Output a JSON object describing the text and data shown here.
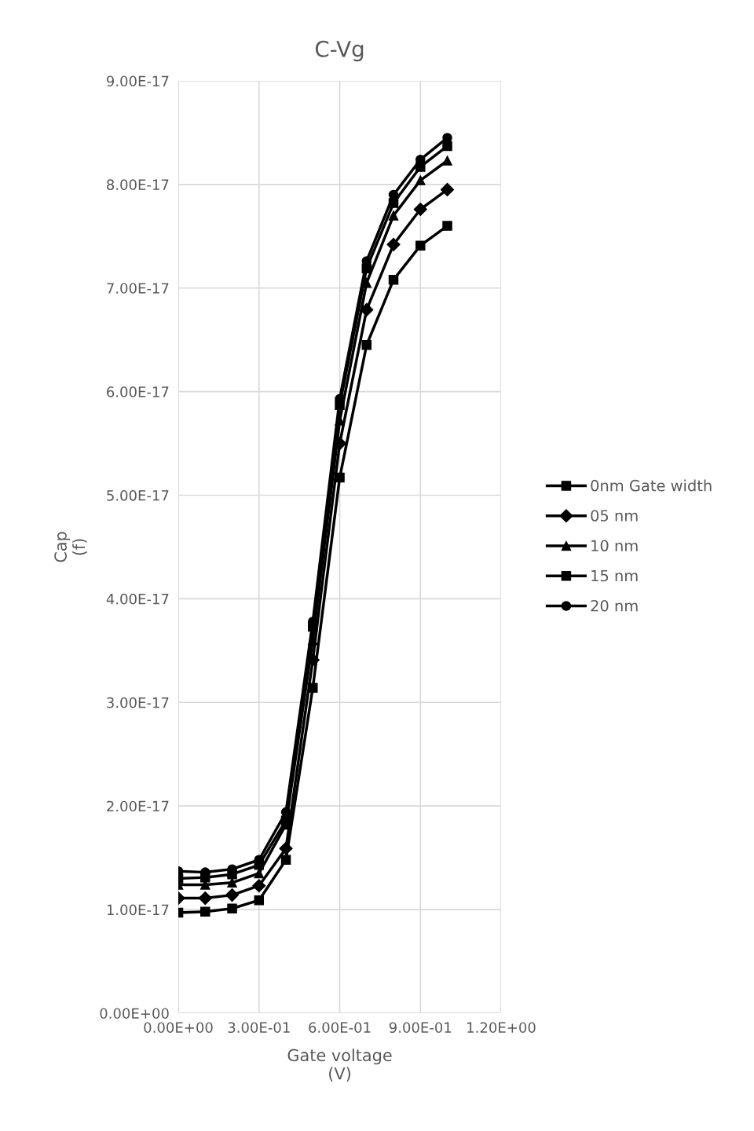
{
  "chart_data": {
    "type": "line",
    "title": "C-Vg",
    "xlabel": "Gate voltage\n(V)",
    "ylabel": "Cap\n(f)",
    "x": [
      0,
      0.1,
      0.2,
      0.3,
      0.4,
      0.5,
      0.6,
      0.7,
      0.8,
      0.9,
      1.0
    ],
    "series": [
      {
        "name": "0nm Gate width",
        "color": "#000000",
        "marker": "square",
        "values": [
          9.7e-18,
          9.8e-18,
          1.01e-17,
          1.09e-17,
          1.48e-17,
          3.14e-17,
          5.17e-17,
          6.45e-17,
          7.08e-17,
          7.41e-17,
          7.6e-17
        ]
      },
      {
        "name": "05 nm",
        "color": "#000000",
        "marker": "diamond",
        "values": [
          1.11e-17,
          1.11e-17,
          1.14e-17,
          1.23e-17,
          1.59e-17,
          3.41e-17,
          5.5e-17,
          6.79e-17,
          7.42e-17,
          7.76e-17,
          7.95e-17
        ]
      },
      {
        "name": "10 nm",
        "color": "#000000",
        "marker": "triangle",
        "values": [
          1.24e-17,
          1.24e-17,
          1.26e-17,
          1.35e-17,
          1.82e-17,
          3.6e-17,
          5.72e-17,
          7.05e-17,
          7.7e-17,
          8.04e-17,
          8.23e-17
        ]
      },
      {
        "name": "15 nm",
        "color": "#000000",
        "marker": "square",
        "values": [
          1.3e-17,
          1.31e-17,
          1.34e-17,
          1.43e-17,
          1.86e-17,
          3.73e-17,
          5.87e-17,
          7.19e-17,
          7.82e-17,
          8.17e-17,
          8.37e-17
        ]
      },
      {
        "name": "20 nm",
        "color": "#000000",
        "marker": "circle",
        "values": [
          1.37e-17,
          1.36e-17,
          1.39e-17,
          1.48e-17,
          1.94e-17,
          3.78e-17,
          5.93e-17,
          7.26e-17,
          7.9e-17,
          8.24e-17,
          8.45e-17
        ]
      }
    ],
    "xlim": [
      0,
      1.2
    ],
    "xticks": [
      {
        "value": 0,
        "label": "0.00E+00"
      },
      {
        "value": 0.3,
        "label": "3.00E-01"
      },
      {
        "value": 0.6,
        "label": "6.00E-01"
      },
      {
        "value": 0.9,
        "label": "9.00E-01"
      },
      {
        "value": 1.2,
        "label": "1.20E+00"
      }
    ],
    "ylim": [
      0,
      9e-17
    ],
    "yticks": [
      {
        "value": 0,
        "label": "0.00E+00"
      },
      {
        "value": 1e-17,
        "label": "1.00E-17"
      },
      {
        "value": 2e-17,
        "label": "2.00E-17"
      },
      {
        "value": 3e-17,
        "label": "3.00E-17"
      },
      {
        "value": 4e-17,
        "label": "4.00E-17"
      },
      {
        "value": 5e-17,
        "label": "5.00E-17"
      },
      {
        "value": 6e-17,
        "label": "6.00E-17"
      },
      {
        "value": 7e-17,
        "label": "7.00E-17"
      },
      {
        "value": 8e-17,
        "label": "8.00E-17"
      },
      {
        "value": 9e-17,
        "label": "9.00E-17"
      }
    ],
    "grid": true,
    "legend": "right",
    "line_style": "solid"
  }
}
